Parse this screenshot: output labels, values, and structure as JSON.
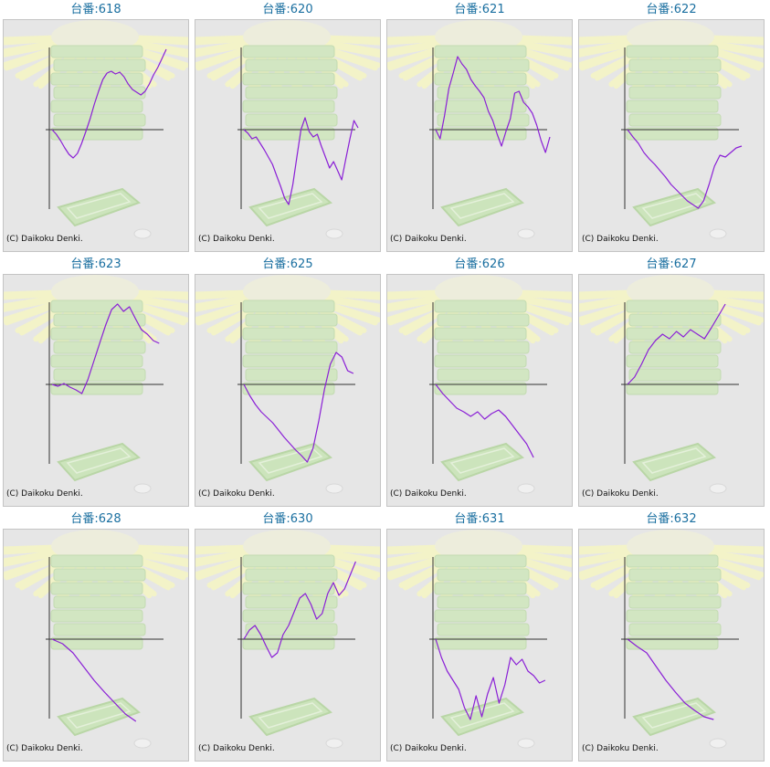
{
  "copyright": "(C) Daikoku Denki.",
  "colors": {
    "title": "#1a6fa0",
    "line": "#8a1fd6",
    "axis": "#333333",
    "panel_bg": "#e6e6e6"
  },
  "chart_data": [
    {
      "type": "line",
      "title": "台番:618",
      "ylim": [
        -1,
        1
      ],
      "y": [
        0,
        -0.05,
        -0.12,
        -0.2,
        -0.27,
        -0.31,
        -0.26,
        -0.15,
        -0.02,
        0.12,
        0.28,
        0.42,
        0.55,
        0.62,
        0.64,
        0.61,
        0.63,
        0.58,
        0.5,
        0.44,
        0.41,
        0.38,
        0.42,
        0.5,
        0.6,
        0.68,
        0.78,
        0.88
      ]
    },
    {
      "type": "line",
      "title": "台番:620",
      "ylim": [
        -1,
        1
      ],
      "y": [
        0,
        -0.04,
        -0.1,
        -0.08,
        -0.15,
        -0.22,
        -0.3,
        -0.38,
        -0.5,
        -0.62,
        -0.75,
        -0.82,
        -0.6,
        -0.3,
        0,
        0.13,
        -0.02,
        -0.08,
        -0.05,
        -0.18,
        -0.3,
        -0.42,
        -0.35,
        -0.45,
        -0.55,
        -0.32,
        -0.1,
        0.1,
        0.02
      ]
    },
    {
      "type": "line",
      "title": "台番:621",
      "ylim": [
        -1,
        1
      ],
      "y": [
        0,
        -0.1,
        0.15,
        0.45,
        0.62,
        0.8,
        0.72,
        0.66,
        0.55,
        0.48,
        0.42,
        0.35,
        0.2,
        0.1,
        -0.05,
        -0.18,
        -0.02,
        0.12,
        0.4,
        0.42,
        0.3,
        0.25,
        0.18,
        0.05,
        -0.12,
        -0.25,
        -0.08
      ]
    },
    {
      "type": "line",
      "title": "台番:622",
      "ylim": [
        -1,
        1
      ],
      "y": [
        0,
        -0.08,
        -0.15,
        -0.25,
        -0.32,
        -0.38,
        -0.45,
        -0.52,
        -0.6,
        -0.66,
        -0.72,
        -0.78,
        -0.82,
        -0.86,
        -0.78,
        -0.6,
        -0.4,
        -0.28,
        -0.3,
        -0.25,
        -0.2,
        -0.18
      ]
    },
    {
      "type": "line",
      "title": "台番:623",
      "ylim": [
        -1,
        1
      ],
      "y": [
        0,
        -0.02,
        0.01,
        -0.03,
        -0.06,
        -0.1,
        0.05,
        0.25,
        0.45,
        0.65,
        0.82,
        0.88,
        0.8,
        0.85,
        0.72,
        0.6,
        0.55,
        0.48,
        0.45
      ]
    },
    {
      "type": "line",
      "title": "台番:625",
      "ylim": [
        -1,
        1
      ],
      "y": [
        0,
        -0.12,
        -0.22,
        -0.3,
        -0.36,
        -0.42,
        -0.5,
        -0.58,
        -0.65,
        -0.72,
        -0.78,
        -0.85,
        -0.7,
        -0.4,
        -0.05,
        0.22,
        0.35,
        0.3,
        0.15,
        0.12
      ]
    },
    {
      "type": "line",
      "title": "台番:626",
      "ylim": [
        -1,
        1
      ],
      "y": [
        0,
        -0.1,
        -0.18,
        -0.26,
        -0.3,
        -0.35,
        -0.3,
        -0.38,
        -0.32,
        -0.28,
        -0.35,
        -0.45,
        -0.55,
        -0.65,
        -0.8
      ]
    },
    {
      "type": "line",
      "title": "台番:627",
      "ylim": [
        -1,
        1
      ],
      "y": [
        0,
        0.08,
        0.22,
        0.38,
        0.48,
        0.55,
        0.5,
        0.58,
        0.52,
        0.6,
        0.55,
        0.5,
        0.62,
        0.75,
        0.88
      ]
    },
    {
      "type": "line",
      "title": "台番:628",
      "ylim": [
        -1,
        1
      ],
      "y": [
        0,
        -0.05,
        -0.15,
        -0.3,
        -0.45,
        -0.58,
        -0.7,
        -0.82,
        -0.9
      ]
    },
    {
      "type": "line",
      "title": "台番:630",
      "ylim": [
        -1,
        1
      ],
      "y": [
        0,
        0.1,
        0.15,
        0.05,
        -0.08,
        -0.2,
        -0.15,
        0.05,
        0.15,
        0.3,
        0.45,
        0.5,
        0.38,
        0.22,
        0.28,
        0.5,
        0.62,
        0.48,
        0.55,
        0.7,
        0.85
      ]
    },
    {
      "type": "line",
      "title": "台番:631",
      "ylim": [
        -1,
        1
      ],
      "y": [
        0,
        -0.2,
        -0.35,
        -0.45,
        -0.55,
        -0.75,
        -0.88,
        -0.62,
        -0.85,
        -0.6,
        -0.42,
        -0.7,
        -0.5,
        -0.2,
        -0.28,
        -0.22,
        -0.35,
        -0.4,
        -0.48,
        -0.45
      ]
    },
    {
      "type": "line",
      "title": "台番:632",
      "ylim": [
        -1,
        1
      ],
      "y": [
        0,
        -0.08,
        -0.15,
        -0.3,
        -0.45,
        -0.58,
        -0.7,
        -0.78,
        -0.85,
        -0.88
      ]
    }
  ]
}
